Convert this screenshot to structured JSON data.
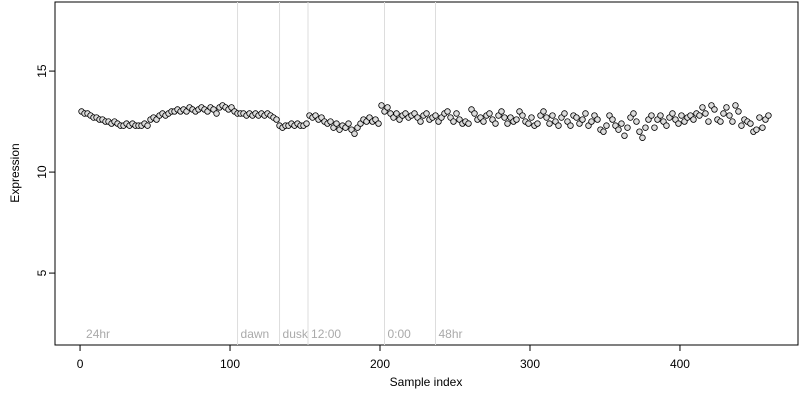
{
  "chart_data": {
    "type": "scatter",
    "x_label": "Sample index",
    "y_label": "Expression",
    "xlim": [
      -16.7,
      478.7
    ],
    "ylim": [
      1.44,
      18.42
    ],
    "xticks": [
      0,
      100,
      200,
      300,
      400
    ],
    "yticks": [
      5,
      10,
      15
    ],
    "vlines": [
      105,
      133,
      152,
      203,
      237
    ],
    "vline_color": "#dddddd",
    "annotations": [
      {
        "text": "24hr",
        "x": 2
      },
      {
        "text": "dawn",
        "x": 105
      },
      {
        "text": "dusk",
        "x": 133
      },
      {
        "text": "12:00",
        "x": 152
      },
      {
        "text": "0:00",
        "x": 203
      },
      {
        "text": "48hr",
        "x": 237
      }
    ],
    "series": [
      {
        "color": "#dddddd",
        "x": [
          1,
          3,
          5,
          7,
          9,
          11,
          13,
          15,
          17,
          19,
          21,
          23,
          25,
          27,
          29,
          31,
          33,
          35,
          37,
          39,
          41,
          43,
          45,
          47,
          49,
          51,
          53,
          55,
          57,
          59,
          61,
          63,
          65,
          67,
          69,
          71,
          73,
          75,
          77,
          79,
          81,
          83,
          85,
          87,
          89,
          91,
          93,
          95,
          97,
          99,
          101,
          103,
          105,
          107,
          109,
          111,
          113,
          115,
          117,
          119,
          121,
          123,
          125,
          127,
          129,
          131,
          133,
          135,
          137,
          139,
          141,
          143,
          145,
          147,
          149,
          151,
          153,
          155,
          157,
          159,
          161,
          163,
          165,
          167,
          169,
          171,
          173,
          175,
          177,
          179,
          181,
          183,
          185,
          187,
          189,
          191,
          193,
          195,
          197,
          199,
          201,
          203,
          205,
          207,
          209,
          211,
          213,
          215,
          217,
          219,
          221,
          223,
          225,
          227,
          229,
          231,
          233,
          235,
          237,
          239,
          241,
          243,
          245,
          247,
          249,
          251,
          253,
          255,
          257,
          259,
          261,
          263,
          265,
          267,
          269,
          271,
          273,
          275,
          277,
          279,
          281,
          283,
          285,
          287,
          289,
          291,
          293,
          295,
          297,
          299,
          301,
          303,
          305,
          307,
          309,
          311,
          313,
          315,
          317,
          319,
          321,
          323,
          325,
          327,
          329,
          331,
          333,
          335,
          337,
          339,
          341,
          343,
          345,
          347,
          349,
          351,
          353,
          355,
          357,
          359,
          361,
          363,
          365,
          367,
          369,
          371,
          373,
          375,
          377,
          379,
          381,
          383,
          385,
          387,
          389,
          391,
          393,
          395,
          397,
          399,
          401,
          403,
          405,
          407,
          409,
          411,
          413,
          415,
          417,
          419,
          421,
          423,
          425,
          427,
          429,
          431,
          433,
          435,
          437,
          439,
          441,
          443,
          445,
          447,
          449,
          451,
          453,
          455,
          457,
          459
        ],
        "values": [
          13.0,
          12.9,
          12.9,
          12.8,
          12.7,
          12.7,
          12.6,
          12.6,
          12.5,
          12.5,
          12.4,
          12.5,
          12.4,
          12.3,
          12.3,
          12.4,
          12.3,
          12.4,
          12.3,
          12.3,
          12.3,
          12.4,
          12.3,
          12.6,
          12.7,
          12.6,
          12.8,
          12.9,
          12.8,
          12.9,
          13.0,
          13.0,
          13.1,
          13.0,
          13.1,
          13.0,
          13.2,
          13.1,
          13.0,
          13.1,
          13.2,
          13.1,
          13.0,
          13.2,
          13.1,
          12.9,
          13.2,
          13.3,
          13.2,
          13.1,
          13.2,
          13.0,
          12.9,
          12.9,
          12.9,
          12.8,
          12.9,
          12.8,
          12.9,
          12.8,
          12.9,
          12.8,
          12.9,
          12.8,
          12.7,
          12.6,
          12.3,
          12.2,
          12.3,
          12.3,
          12.4,
          12.3,
          12.4,
          12.3,
          12.3,
          12.4,
          12.8,
          12.7,
          12.8,
          12.6,
          12.7,
          12.5,
          12.4,
          12.5,
          12.2,
          12.4,
          12.1,
          12.3,
          12.2,
          12.4,
          12.1,
          11.9,
          12.2,
          12.4,
          12.6,
          12.5,
          12.7,
          12.5,
          12.6,
          12.4,
          13.3,
          13.0,
          13.2,
          12.9,
          12.7,
          12.9,
          12.6,
          12.8,
          12.9,
          12.7,
          12.8,
          12.9,
          12.7,
          12.5,
          12.8,
          12.9,
          12.6,
          12.7,
          12.8,
          12.5,
          12.7,
          12.9,
          13.0,
          12.7,
          12.5,
          12.9,
          12.6,
          12.4,
          12.5,
          12.4,
          13.1,
          12.9,
          12.6,
          12.7,
          12.5,
          12.8,
          12.9,
          12.6,
          12.4,
          12.8,
          13.0,
          12.7,
          12.4,
          12.7,
          12.5,
          12.6,
          13.0,
          12.8,
          12.5,
          12.4,
          12.7,
          12.3,
          12.4,
          12.8,
          13.0,
          12.7,
          12.4,
          12.8,
          12.5,
          12.3,
          12.7,
          12.9,
          12.5,
          12.3,
          12.8,
          12.7,
          12.4,
          12.6,
          12.9,
          12.3,
          12.5,
          12.8,
          12.6,
          12.1,
          12.0,
          12.3,
          12.8,
          12.6,
          12.3,
          12.1,
          12.4,
          11.8,
          12.2,
          12.7,
          12.9,
          12.5,
          12.0,
          11.7,
          12.2,
          12.6,
          12.8,
          12.2,
          12.6,
          12.8,
          12.5,
          12.3,
          12.7,
          12.9,
          12.6,
          12.4,
          12.8,
          12.5,
          12.7,
          12.8,
          12.6,
          12.9,
          12.8,
          13.2,
          12.9,
          12.5,
          13.3,
          13.1,
          12.6,
          12.5,
          12.9,
          13.2,
          12.8,
          12.5,
          13.3,
          13.0,
          12.3,
          12.6,
          12.5,
          12.4,
          12.0,
          12.1,
          12.7,
          12.2,
          12.6,
          12.8
        ]
      }
    ]
  }
}
